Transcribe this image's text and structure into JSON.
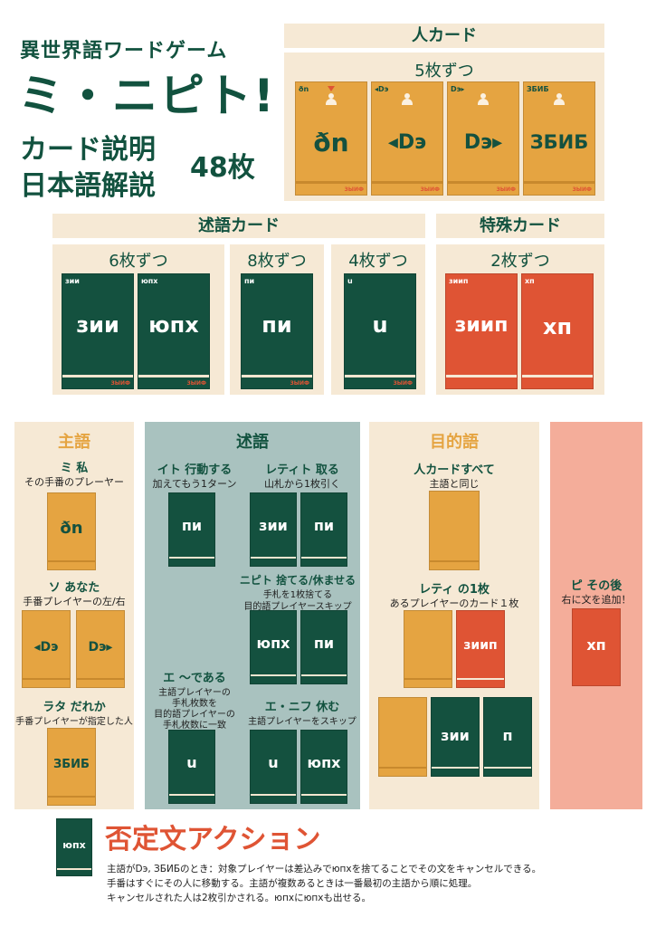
{
  "title": {
    "line1": "異世界語ワードゲーム",
    "line2": "ミ・ニピト!",
    "line3": "カード説明",
    "line4": "日本語解説",
    "count": "48枚"
  },
  "colors": {
    "green": "#14513f",
    "orange": "#e5a441",
    "red": "#df5434",
    "cream": "#f6e9d5",
    "teal": "#a9c2bf",
    "pink": "#f4ad9a"
  },
  "person": {
    "header": "人カード",
    "count": "5枚ずつ",
    "cards": [
      {
        "tab": "ðn",
        "word": "ðn"
      },
      {
        "tab": "◂Dэ",
        "word": "◂Dэ"
      },
      {
        "tab": "Dэ▸",
        "word": "Dэ▸"
      },
      {
        "tab": "ЗБИБ",
        "word": "ЗБИБ"
      }
    ]
  },
  "pred": {
    "header": "述語カード",
    "groups": [
      {
        "count": "6枚ずつ",
        "cards": [
          {
            "tab": "зии",
            "word": "зии"
          },
          {
            "tab": "юпх",
            "word": "юпх"
          }
        ]
      },
      {
        "count": "8枚ずつ",
        "cards": [
          {
            "tab": "пи",
            "word": "пи"
          }
        ]
      },
      {
        "count": "4枚ずつ",
        "cards": [
          {
            "tab": "u",
            "word": "u"
          }
        ]
      }
    ]
  },
  "special": {
    "header": "特殊カード",
    "count": "2枚ずつ",
    "cards": [
      {
        "tab": "зиип",
        "word": "зиип"
      },
      {
        "tab": "хп",
        "word": "хп"
      }
    ]
  },
  "subject": {
    "title": "主語",
    "items": [
      {
        "name": "ミ 私",
        "desc": "その手番のプレーヤー",
        "cards": [
          "ðn"
        ]
      },
      {
        "name": "ソ あなた",
        "desc": "手番プレイヤーの左/右",
        "cards": [
          "◂Dэ",
          "Dэ▸"
        ]
      },
      {
        "name": "ラタ だれか",
        "desc": "手番プレイヤーが指定した人",
        "cards": [
          "ЗБИБ"
        ]
      }
    ]
  },
  "predicate": {
    "title": "述語",
    "items": [
      {
        "name": "イト 行動する",
        "desc": "加えてもう1ターン",
        "cards": [
          "пи"
        ]
      },
      {
        "name": "レティト 取る",
        "desc": "山札から1枚引く",
        "cards": [
          "зии",
          "пи"
        ]
      },
      {
        "name": "ニピト 捨てる/休ませる",
        "desc1": "手札を1枚捨てる",
        "desc2": "目的語プレイヤースキップ",
        "cards": [
          "юпх",
          "пи"
        ]
      },
      {
        "name": "エ 〜である",
        "desc1": "主語プレイヤーの",
        "desc2": "手札枚数を",
        "desc3": "目的語プレイヤーの",
        "desc4": "手札枚数に一致",
        "cards": [
          "u"
        ]
      },
      {
        "name": "エ・ニフ 休む",
        "desc": "主語プレイヤーをスキップ",
        "cards": [
          "u",
          "юпх"
        ]
      }
    ]
  },
  "object": {
    "title": "目的語",
    "items": [
      {
        "name": "人カードすべて",
        "desc": "主語と同じ"
      },
      {
        "name": "レティ の1枚",
        "desc": "あるプレイヤーのカード１枚",
        "cards": [
          "зиип"
        ]
      }
    ],
    "example": [
      "зии",
      "п"
    ]
  },
  "after": {
    "name": "ピ その後",
    "desc": "右に文を追加！",
    "card": "хп"
  },
  "negation": {
    "card": "юпх",
    "title": "否定文アクション",
    "line1": "主語がDэ, ЗБИБのとき：対象プレイヤーは差込みでюпхを捨てることでその文をキャンセルできる。",
    "line2": "手番はすぐにその人に移動する。主語が複数あるときは一番最初の主語から順に処理。",
    "line3": "キャンセルされた人は2枚引かされる。юпхにюпхも出せる。"
  },
  "brand": "ЗЫИФ"
}
